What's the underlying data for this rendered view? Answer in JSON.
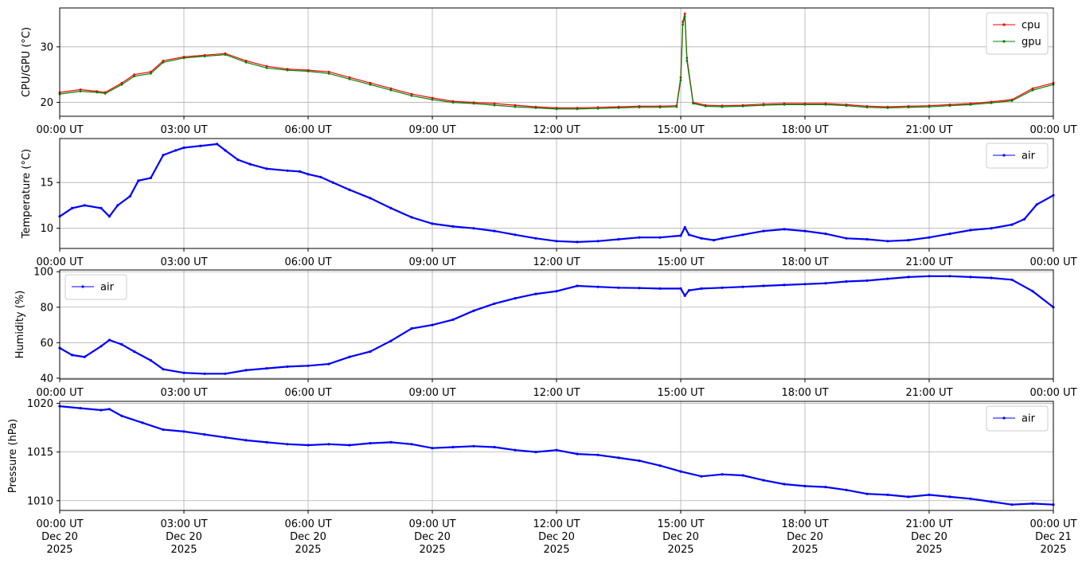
{
  "chart_data": [
    {
      "type": "line",
      "ylabel": "CPU/GPU (°C)",
      "xlim": [
        "00:00",
        "24:00"
      ],
      "ylim": [
        17.5,
        37.0
      ],
      "yticks": [
        20,
        30
      ],
      "xtick_labels": [
        "00:00 UT",
        "03:00 UT",
        "06:00 UT",
        "09:00 UT",
        "12:00 UT",
        "15:00 UT",
        "18:00 UT",
        "21:00 UT",
        "00:00 UT"
      ],
      "grid": true,
      "legend": "top-right",
      "series": [
        {
          "name": "cpu",
          "color": "#ff0000",
          "x_hours": [
            0,
            0.5,
            0.9,
            1.1,
            1.5,
            1.8,
            2.2,
            2.5,
            3.0,
            3.5,
            4.0,
            4.5,
            5.0,
            5.5,
            6.0,
            6.5,
            7.0,
            7.5,
            8.0,
            8.5,
            9.0,
            9.5,
            10.0,
            10.5,
            11.0,
            11.5,
            12.0,
            12.5,
            13.0,
            13.5,
            14.0,
            14.5,
            14.9,
            15.0,
            15.05,
            15.1,
            15.15,
            15.3,
            15.6,
            16.0,
            16.5,
            17.0,
            17.5,
            18.0,
            18.5,
            19.0,
            19.5,
            20.0,
            20.5,
            21.0,
            21.5,
            22.0,
            22.5,
            23.0,
            23.5,
            24.0
          ],
          "values": [
            21.8,
            22.3,
            22.0,
            21.8,
            23.5,
            25.0,
            25.5,
            27.5,
            28.2,
            28.5,
            28.8,
            27.5,
            26.5,
            26.0,
            25.8,
            25.5,
            24.5,
            23.5,
            22.5,
            21.5,
            20.8,
            20.2,
            20.0,
            19.8,
            19.5,
            19.2,
            19.0,
            19.0,
            19.1,
            19.2,
            19.3,
            19.3,
            19.4,
            24.5,
            34.5,
            36.0,
            28.0,
            20.0,
            19.5,
            19.4,
            19.5,
            19.7,
            19.8,
            19.8,
            19.8,
            19.6,
            19.3,
            19.2,
            19.3,
            19.4,
            19.6,
            19.8,
            20.1,
            20.5,
            22.5,
            23.5
          ]
        },
        {
          "name": "gpu",
          "color": "#008000",
          "x_hours": [
            0,
            0.5,
            0.9,
            1.1,
            1.5,
            1.8,
            2.2,
            2.5,
            3.0,
            3.5,
            4.0,
            4.5,
            5.0,
            5.5,
            6.0,
            6.5,
            7.0,
            7.5,
            8.0,
            8.5,
            9.0,
            9.5,
            10.0,
            10.5,
            11.0,
            11.5,
            12.0,
            12.5,
            13.0,
            13.5,
            14.0,
            14.5,
            14.9,
            15.0,
            15.05,
            15.1,
            15.15,
            15.3,
            15.6,
            16.0,
            16.5,
            17.0,
            17.5,
            18.0,
            18.5,
            19.0,
            19.5,
            20.0,
            20.5,
            21.0,
            21.5,
            22.0,
            22.5,
            23.0,
            23.5,
            24.0
          ],
          "values": [
            21.5,
            22.0,
            21.8,
            21.6,
            23.2,
            24.7,
            25.2,
            27.2,
            28.0,
            28.3,
            28.6,
            27.2,
            26.2,
            25.8,
            25.6,
            25.2,
            24.2,
            23.2,
            22.2,
            21.2,
            20.5,
            20.0,
            19.8,
            19.5,
            19.2,
            19.0,
            18.8,
            18.8,
            18.9,
            19.0,
            19.1,
            19.1,
            19.2,
            24.0,
            34.0,
            35.5,
            27.5,
            19.8,
            19.3,
            19.2,
            19.3,
            19.5,
            19.6,
            19.6,
            19.6,
            19.4,
            19.1,
            19.0,
            19.1,
            19.2,
            19.4,
            19.6,
            19.9,
            20.3,
            22.2,
            23.2
          ]
        }
      ]
    },
    {
      "type": "line",
      "ylabel": "Temperature (°C)",
      "xlim": [
        "00:00",
        "24:00"
      ],
      "ylim": [
        7.8,
        19.8
      ],
      "yticks": [
        10,
        15
      ],
      "xtick_labels": [
        "00:00 UT",
        "03:00 UT",
        "06:00 UT",
        "09:00 UT",
        "12:00 UT",
        "15:00 UT",
        "18:00 UT",
        "21:00 UT",
        "00:00 UT"
      ],
      "grid": true,
      "legend": "top-right",
      "series": [
        {
          "name": "air",
          "color": "#0000ff",
          "x_hours": [
            0,
            0.3,
            0.6,
            1.0,
            1.2,
            1.4,
            1.7,
            1.9,
            2.2,
            2.5,
            2.8,
            3.0,
            3.4,
            3.8,
            4.0,
            4.3,
            4.6,
            5.0,
            5.5,
            5.8,
            6.0,
            6.3,
            6.6,
            7.0,
            7.5,
            8.0,
            8.5,
            9.0,
            9.5,
            10.0,
            10.5,
            11.0,
            11.5,
            12.0,
            12.5,
            13.0,
            13.5,
            14.0,
            14.5,
            15.0,
            15.1,
            15.2,
            15.5,
            15.8,
            16.0,
            16.5,
            17.0,
            17.5,
            18.0,
            18.5,
            19.0,
            19.5,
            20.0,
            20.5,
            21.0,
            21.5,
            22.0,
            22.5,
            23.0,
            23.3,
            23.6,
            24.0
          ],
          "values": [
            11.3,
            12.2,
            12.5,
            12.2,
            11.3,
            12.5,
            13.5,
            15.2,
            15.5,
            18.0,
            18.5,
            18.8,
            19.0,
            19.2,
            18.5,
            17.5,
            17.0,
            16.5,
            16.3,
            16.2,
            15.9,
            15.6,
            15.0,
            14.2,
            13.3,
            12.2,
            11.2,
            10.5,
            10.2,
            10.0,
            9.7,
            9.3,
            8.9,
            8.6,
            8.5,
            8.6,
            8.8,
            9.0,
            9.0,
            9.2,
            10.1,
            9.3,
            8.9,
            8.7,
            8.9,
            9.3,
            9.7,
            9.9,
            9.7,
            9.4,
            8.9,
            8.8,
            8.6,
            8.7,
            9.0,
            9.4,
            9.8,
            10.0,
            10.4,
            11.0,
            12.6,
            13.6
          ]
        }
      ]
    },
    {
      "type": "line",
      "ylabel": "Humidity (%)",
      "xlim": [
        "00:00",
        "24:00"
      ],
      "ylim": [
        39.5,
        101
      ],
      "yticks": [
        40,
        60,
        80,
        100
      ],
      "xtick_labels": [
        "00:00 UT",
        "03:00 UT",
        "06:00 UT",
        "09:00 UT",
        "12:00 UT",
        "15:00 UT",
        "18:00 UT",
        "21:00 UT",
        "00:00 UT"
      ],
      "grid": true,
      "legend": "top-left",
      "series": [
        {
          "name": "air",
          "color": "#0000ff",
          "x_hours": [
            0,
            0.3,
            0.6,
            1.0,
            1.2,
            1.5,
            1.8,
            2.2,
            2.5,
            3.0,
            3.5,
            4.0,
            4.5,
            5.0,
            5.5,
            6.0,
            6.5,
            7.0,
            7.5,
            8.0,
            8.5,
            9.0,
            9.5,
            10.0,
            10.5,
            11.0,
            11.5,
            12.0,
            12.5,
            13.0,
            13.5,
            14.0,
            14.5,
            15.0,
            15.1,
            15.2,
            15.5,
            16.0,
            16.5,
            17.0,
            17.5,
            18.0,
            18.5,
            19.0,
            19.5,
            20.0,
            20.5,
            21.0,
            21.5,
            22.0,
            22.5,
            23.0,
            23.5,
            24.0
          ],
          "values": [
            57,
            53,
            52,
            58,
            61.5,
            59,
            55,
            50,
            45,
            43,
            42.5,
            42.5,
            44.5,
            45.5,
            46.5,
            47,
            48,
            52,
            55,
            61,
            68,
            70,
            73,
            78,
            82,
            85,
            87.5,
            89,
            92,
            91.5,
            91,
            90.8,
            90.5,
            90.5,
            86.5,
            89.5,
            90.5,
            91,
            91.5,
            92,
            92.5,
            93,
            93.5,
            94.5,
            95,
            96,
            97,
            97.5,
            97.5,
            97,
            96.5,
            95.5,
            89,
            80
          ]
        }
      ]
    },
    {
      "type": "line",
      "ylabel": "Pressure (hPa)",
      "xlim": [
        "2025-12-20 00:00",
        "2025-12-21 00:00"
      ],
      "ylim": [
        1009.0,
        1020.2
      ],
      "yticks": [
        1010,
        1015,
        1020
      ],
      "xtick_labels": [
        "00:00 UT",
        "03:00 UT",
        "06:00 UT",
        "09:00 UT",
        "12:00 UT",
        "15:00 UT",
        "18:00 UT",
        "21:00 UT",
        "00:00 UT"
      ],
      "xtick_dates": [
        "Dec 20",
        "Dec 20",
        "Dec 20",
        "Dec 20",
        "Dec 20",
        "Dec 20",
        "Dec 20",
        "Dec 20",
        "Dec 21"
      ],
      "xtick_years": [
        "2025",
        "2025",
        "2025",
        "2025",
        "2025",
        "2025",
        "2025",
        "2025",
        "2025"
      ],
      "grid": true,
      "legend": "top-right",
      "series": [
        {
          "name": "air",
          "color": "#0000ff",
          "x_hours": [
            0,
            0.5,
            1.0,
            1.2,
            1.5,
            2.0,
            2.5,
            3.0,
            3.5,
            4.0,
            4.5,
            5.0,
            5.5,
            6.0,
            6.5,
            7.0,
            7.5,
            8.0,
            8.5,
            9.0,
            9.5,
            10.0,
            10.5,
            11.0,
            11.5,
            12.0,
            12.5,
            13.0,
            13.5,
            14.0,
            14.5,
            15.0,
            15.5,
            16.0,
            16.5,
            17.0,
            17.5,
            18.0,
            18.5,
            19.0,
            19.5,
            20.0,
            20.5,
            21.0,
            21.5,
            22.0,
            22.5,
            23.0,
            23.5,
            24.0
          ],
          "values": [
            1019.7,
            1019.5,
            1019.3,
            1019.4,
            1018.7,
            1018.0,
            1017.3,
            1017.1,
            1016.8,
            1016.5,
            1016.2,
            1016.0,
            1015.8,
            1015.7,
            1015.8,
            1015.7,
            1015.9,
            1016.0,
            1015.8,
            1015.4,
            1015.5,
            1015.6,
            1015.5,
            1015.2,
            1015.0,
            1015.2,
            1014.8,
            1014.7,
            1014.4,
            1014.1,
            1013.6,
            1013.0,
            1012.5,
            1012.7,
            1012.6,
            1012.1,
            1011.7,
            1011.5,
            1011.4,
            1011.1,
            1010.7,
            1010.6,
            1010.4,
            1010.6,
            1010.4,
            1010.2,
            1009.9,
            1009.6,
            1009.7,
            1009.6
          ]
        }
      ]
    }
  ]
}
